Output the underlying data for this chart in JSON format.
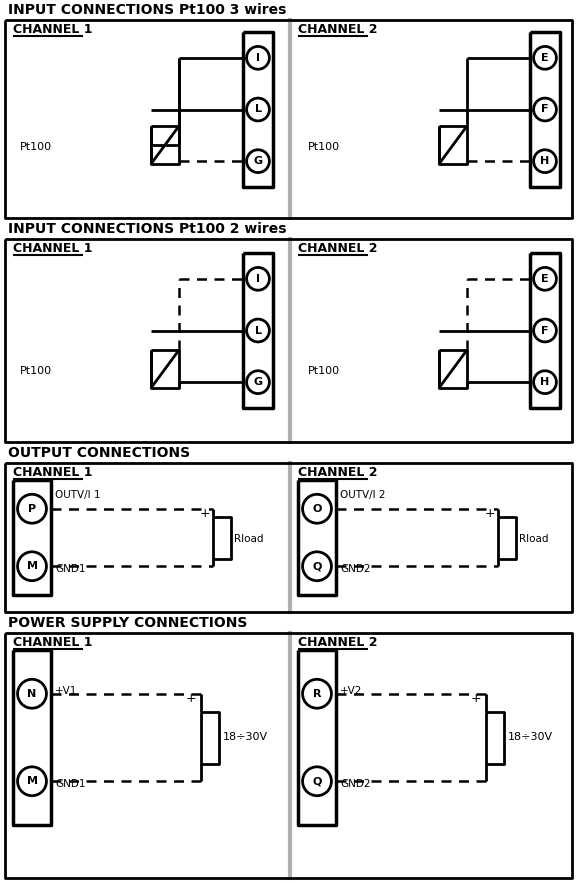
{
  "title": "INPUT CONNECTIONS Pt100 3 wires",
  "title2": "INPUT CONNECTIONS Pt100 2 wires",
  "title3": "OUTPUT CONNECTIONS",
  "title4": "POWER SUPPLY CONNECTIONS",
  "bg_color": "#ffffff",
  "fg_color": "#000000",
  "divider_color": "#b0b0b0",
  "channel1": "CHANNEL 1",
  "channel2": "CHANNEL 2",
  "pt100": "Pt100",
  "outv1": "OUTV/I 1",
  "outv2": "OUTV/I 2",
  "rload": "Rload",
  "gnd1": "GND1",
  "gnd2": "GND2",
  "v1": "+V1",
  "v2": "+V2",
  "voltage": "18÷30V",
  "pins_ch1_3w": [
    "I",
    "L",
    "G"
  ],
  "pins_ch2_3w": [
    "E",
    "F",
    "H"
  ],
  "pins_out_ch1": [
    "P",
    "M"
  ],
  "pins_out_ch2": [
    "O",
    "Q"
  ],
  "pins_pwr_ch1": [
    "N",
    "M"
  ],
  "pins_pwr_ch2": [
    "R",
    "Q"
  ]
}
